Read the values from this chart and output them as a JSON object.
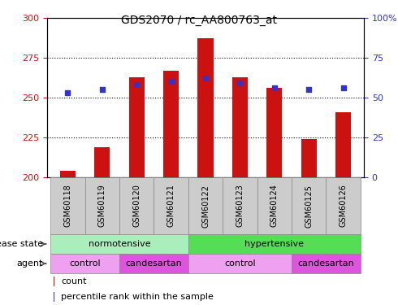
{
  "title": "GDS2070 / rc_AA800763_at",
  "samples": [
    "GSM60118",
    "GSM60119",
    "GSM60120",
    "GSM60121",
    "GSM60122",
    "GSM60123",
    "GSM60124",
    "GSM60125",
    "GSM60126"
  ],
  "count_values": [
    204,
    219,
    263,
    267,
    287,
    263,
    256,
    224,
    241
  ],
  "percentile_values": [
    53,
    55,
    58,
    60,
    62,
    59,
    56,
    55,
    56
  ],
  "ylim_left": [
    200,
    300
  ],
  "ylim_right": [
    0,
    100
  ],
  "yticks_left": [
    200,
    225,
    250,
    275,
    300
  ],
  "yticks_right": [
    0,
    25,
    50,
    75,
    100
  ],
  "right_tick_labels": [
    "0",
    "25",
    "50",
    "75",
    "100%"
  ],
  "bar_color": "#cc1111",
  "dot_color": "#3333cc",
  "bar_width": 0.45,
  "disease_state_groups": [
    {
      "label": "normotensive",
      "start": 0,
      "end": 4,
      "color": "#aaeebb"
    },
    {
      "label": "hypertensive",
      "start": 4,
      "end": 9,
      "color": "#55dd55"
    }
  ],
  "agent_groups": [
    {
      "label": "control",
      "start": 0,
      "end": 2,
      "color": "#f0a0f0"
    },
    {
      "label": "candesartan",
      "start": 2,
      "end": 4,
      "color": "#dd55dd"
    },
    {
      "label": "control",
      "start": 4,
      "end": 7,
      "color": "#f0a0f0"
    },
    {
      "label": "candesartan",
      "start": 7,
      "end": 9,
      "color": "#dd55dd"
    }
  ],
  "legend_count_label": "count",
  "legend_percentile_label": "percentile rank within the sample",
  "disease_state_label": "disease state",
  "agent_label": "agent",
  "left_axis_color": "#cc1111",
  "right_axis_color": "#3333cc",
  "grid_color": "#000000",
  "background_color": "#ffffff",
  "sample_bg_color": "#cccccc",
  "border_color": "#888888"
}
